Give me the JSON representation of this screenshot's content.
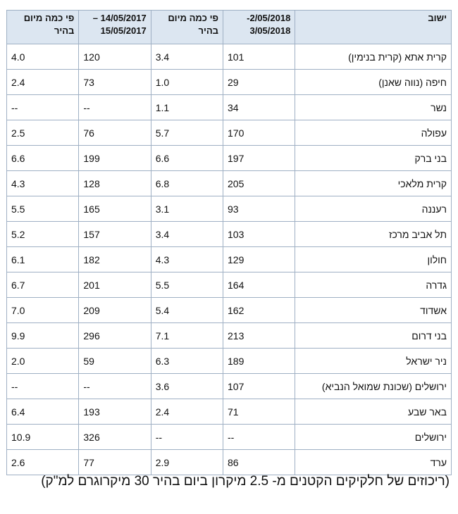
{
  "table": {
    "headers": [
      "ישוב",
      "2/05/2018- 3/05/2018",
      "פי כמה מיום בהיר",
      "14/05/2017 – 15/05/2017",
      "פי כמה מיום בהיר"
    ],
    "rows": [
      [
        "קרית אתא (קרית בנימין)",
        "101",
        "3.4",
        "120",
        "4.0"
      ],
      [
        "חיפה (נווה שאנן)",
        "29",
        "1.0",
        "73",
        "2.4"
      ],
      [
        "נשר",
        "34",
        "1.1",
        "--",
        "--"
      ],
      [
        "עפולה",
        "170",
        "5.7",
        "76",
        "2.5"
      ],
      [
        "בני ברק",
        "197",
        "6.6",
        "199",
        "6.6"
      ],
      [
        "קרית מלאכי",
        "205",
        "6.8",
        "128",
        "4.3"
      ],
      [
        "רעננה",
        "93",
        "3.1",
        "165",
        "5.5"
      ],
      [
        "תל אביב מרכז",
        "103",
        "3.4",
        "157",
        "5.2"
      ],
      [
        "חולון",
        "129",
        "4.3",
        "182",
        "6.1"
      ],
      [
        "גדרה",
        "164",
        "5.5",
        "201",
        "6.7"
      ],
      [
        "אשדוד",
        "162",
        "5.4",
        "209",
        "7.0"
      ],
      [
        "בני דרום",
        "213",
        "7.1",
        "296",
        "9.9"
      ],
      [
        "ניר ישראל",
        "189",
        "6.3",
        "59",
        "2.0"
      ],
      [
        "ירושלים (שכונת שמואל הנביא)",
        "107",
        "3.6",
        "--",
        "--"
      ],
      [
        "באר שבע",
        "71",
        "2.4",
        "193",
        "6.4"
      ],
      [
        "ירושלים",
        "--",
        "--",
        "326",
        "10.9"
      ],
      [
        "ערד",
        "86",
        "2.9",
        "77",
        "2.6"
      ]
    ]
  },
  "caption": "(ריכוזים של חלקיקים הקטנים מ- 2.5 מיקרון ביום בהיר 30 מיקרוגרם למ\"ק)"
}
